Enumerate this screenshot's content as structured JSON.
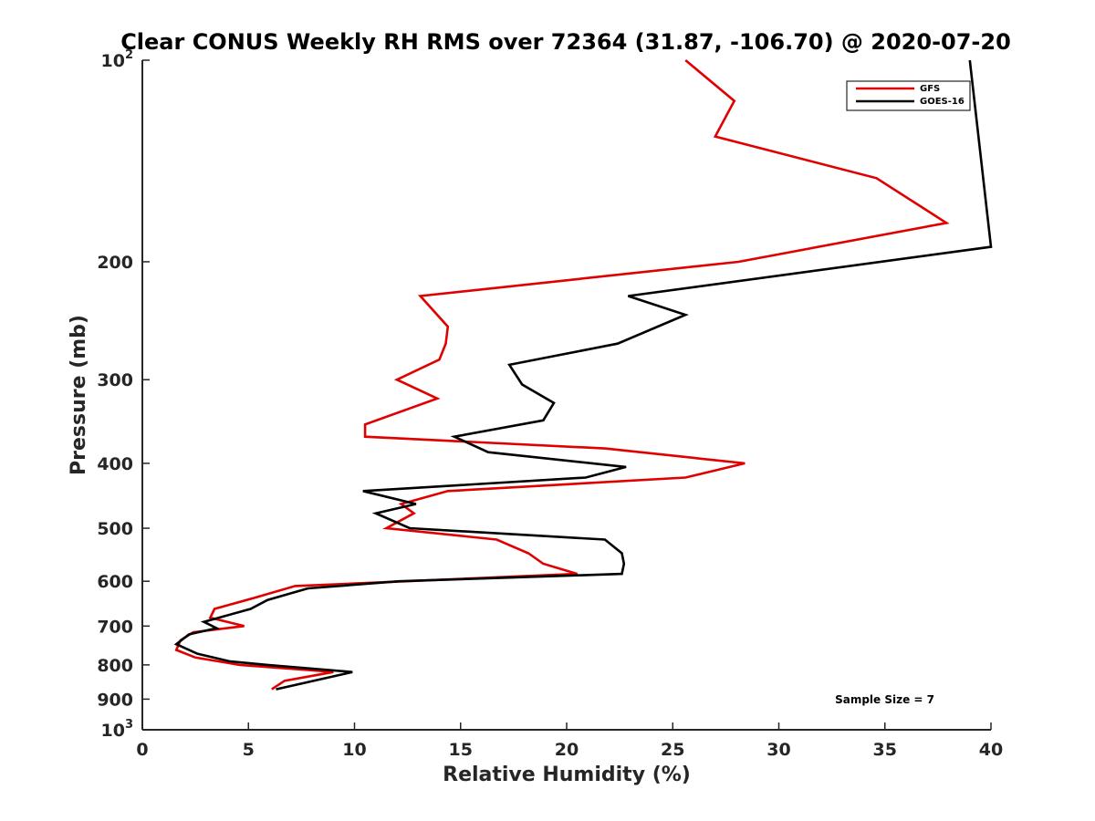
{
  "chart_data": {
    "type": "line",
    "title": "Clear CONUS Weekly RH RMS over 72364 (31.87, -106.70) @ 2020-07-20",
    "xlabel": "Relative Humidity (%)",
    "ylabel": "Pressure (mb)",
    "xlim": [
      0,
      40
    ],
    "ylim": [
      100,
      1000
    ],
    "y_scale": "log",
    "y_reversed": true,
    "x_ticks": [
      0,
      5,
      10,
      15,
      20,
      25,
      30,
      35,
      40
    ],
    "y_ticks": [
      {
        "value": 100,
        "base": "10",
        "exp": "2"
      },
      {
        "value": 200,
        "label": "200"
      },
      {
        "value": 300,
        "label": "300"
      },
      {
        "value": 400,
        "label": "400"
      },
      {
        "value": 500,
        "label": "500"
      },
      {
        "value": 600,
        "label": "600"
      },
      {
        "value": 700,
        "label": "700"
      },
      {
        "value": 800,
        "label": "800"
      },
      {
        "value": 900,
        "label": "900"
      },
      {
        "value": 1000,
        "base": "10",
        "exp": "3"
      }
    ],
    "grid": false,
    "legend_position": "top-right",
    "annotation": "Sample Size = 7",
    "series": [
      {
        "name": "GFS",
        "color": "#e00000",
        "points": [
          [
            25.6,
            100
          ],
          [
            27.9,
            115
          ],
          [
            27.0,
            130
          ],
          [
            34.6,
            150
          ],
          [
            37.9,
            175
          ],
          [
            28.1,
            200
          ],
          [
            13.1,
            225
          ],
          [
            14.4,
            250
          ],
          [
            14.3,
            265
          ],
          [
            14.0,
            280
          ],
          [
            12.0,
            300
          ],
          [
            13.9,
            320
          ],
          [
            10.5,
            350
          ],
          [
            10.5,
            365
          ],
          [
            21.8,
            380
          ],
          [
            28.4,
            400
          ],
          [
            25.6,
            420
          ],
          [
            14.4,
            440
          ],
          [
            12.2,
            460
          ],
          [
            12.8,
            475
          ],
          [
            11.5,
            500
          ],
          [
            16.7,
            520
          ],
          [
            18.2,
            545
          ],
          [
            18.9,
            565
          ],
          [
            20.5,
            585
          ],
          [
            7.2,
            610
          ],
          [
            5.3,
            635
          ],
          [
            3.4,
            660
          ],
          [
            3.2,
            680
          ],
          [
            4.8,
            700
          ],
          [
            2.4,
            715
          ],
          [
            1.8,
            735
          ],
          [
            1.6,
            760
          ],
          [
            2.5,
            780
          ],
          [
            4.6,
            800
          ],
          [
            8.0,
            815
          ],
          [
            9.0,
            820
          ],
          [
            6.7,
            845
          ],
          [
            6.1,
            870
          ]
        ]
      },
      {
        "name": "GOES-16",
        "color": "#000000",
        "points": [
          [
            39.0,
            100
          ],
          [
            40.0,
            190
          ],
          [
            22.9,
            225
          ],
          [
            25.6,
            240
          ],
          [
            22.4,
            265
          ],
          [
            17.3,
            285
          ],
          [
            17.9,
            305
          ],
          [
            19.4,
            325
          ],
          [
            18.9,
            345
          ],
          [
            14.7,
            365
          ],
          [
            16.3,
            385
          ],
          [
            22.8,
            405
          ],
          [
            20.9,
            420
          ],
          [
            10.4,
            440
          ],
          [
            12.9,
            460
          ],
          [
            11.0,
            475
          ],
          [
            12.6,
            500
          ],
          [
            21.8,
            520
          ],
          [
            22.6,
            545
          ],
          [
            22.7,
            565
          ],
          [
            22.6,
            585
          ],
          [
            12.1,
            600
          ],
          [
            7.8,
            615
          ],
          [
            5.9,
            640
          ],
          [
            5.1,
            660
          ],
          [
            2.9,
            690
          ],
          [
            3.5,
            705
          ],
          [
            2.2,
            720
          ],
          [
            1.6,
            745
          ],
          [
            2.6,
            770
          ],
          [
            4.1,
            790
          ],
          [
            5.9,
            800
          ],
          [
            9.9,
            820
          ],
          [
            6.3,
            870
          ]
        ]
      }
    ]
  }
}
